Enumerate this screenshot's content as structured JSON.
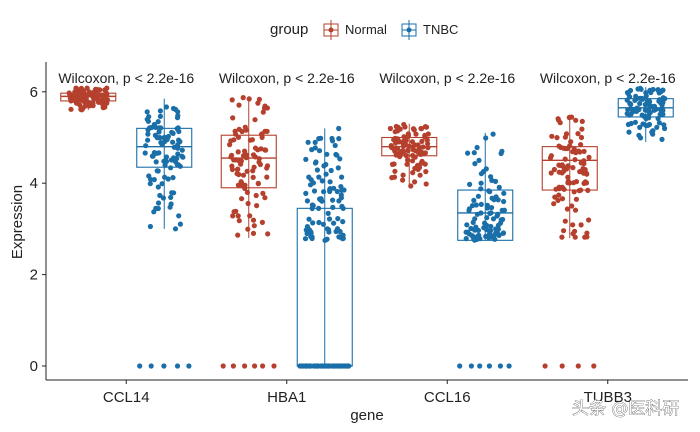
{
  "chart_data": {
    "type": "boxplot",
    "title": "",
    "xlabel": "gene",
    "ylabel": "Expression",
    "ylim": [
      -0.3,
      6.65
    ],
    "yticks": [
      0,
      2,
      4,
      6
    ],
    "categories": [
      "CCL14",
      "HBA1",
      "CCL16",
      "TUBB3"
    ],
    "legend": {
      "title": "group",
      "position": "top",
      "entries": [
        "Normal",
        "TNBC"
      ]
    },
    "annotations": [
      "Wilcoxon, p < 2.2e-16",
      "Wilcoxon, p < 2.2e-16",
      "Wilcoxon, p < 2.2e-16",
      "Wilcoxon, p < 2.2e-16"
    ],
    "series": [
      {
        "name": "Normal",
        "color": "#b5402d",
        "boxes": [
          {
            "gene": "CCL14",
            "min": 5.6,
            "q1": 5.8,
            "median": 5.9,
            "q3": 5.97,
            "max": 6.1,
            "zeros": 0
          },
          {
            "gene": "HBA1",
            "min": 2.8,
            "q1": 3.9,
            "median": 4.55,
            "q3": 5.05,
            "max": 5.9,
            "zeros": 6
          },
          {
            "gene": "CCL16",
            "min": 3.9,
            "q1": 4.6,
            "median": 4.8,
            "q3": 5.0,
            "max": 5.3,
            "zeros": 0
          },
          {
            "gene": "TUBB3",
            "min": 2.8,
            "q1": 3.85,
            "median": 4.5,
            "q3": 4.8,
            "max": 5.5,
            "zeros": 4
          }
        ]
      },
      {
        "name": "TNBC",
        "color": "#1a6fa8",
        "boxes": [
          {
            "gene": "CCL14",
            "min": 3.0,
            "q1": 4.35,
            "median": 4.8,
            "q3": 5.2,
            "max": 5.85,
            "zeros": 5
          },
          {
            "gene": "HBA1",
            "min": 0.0,
            "q1": 0.0,
            "median": 0.0,
            "q3": 3.45,
            "max": 5.2,
            "zeros": 40
          },
          {
            "gene": "CCL16",
            "min": 2.75,
            "q1": 2.75,
            "median": 3.35,
            "q3": 3.85,
            "max": 5.1,
            "zeros": 6
          },
          {
            "gene": "TUBB3",
            "min": 4.9,
            "q1": 5.45,
            "median": 5.65,
            "q3": 5.85,
            "max": 6.1,
            "zeros": 0
          }
        ]
      }
    ]
  },
  "watermark": "头条 @医科研"
}
